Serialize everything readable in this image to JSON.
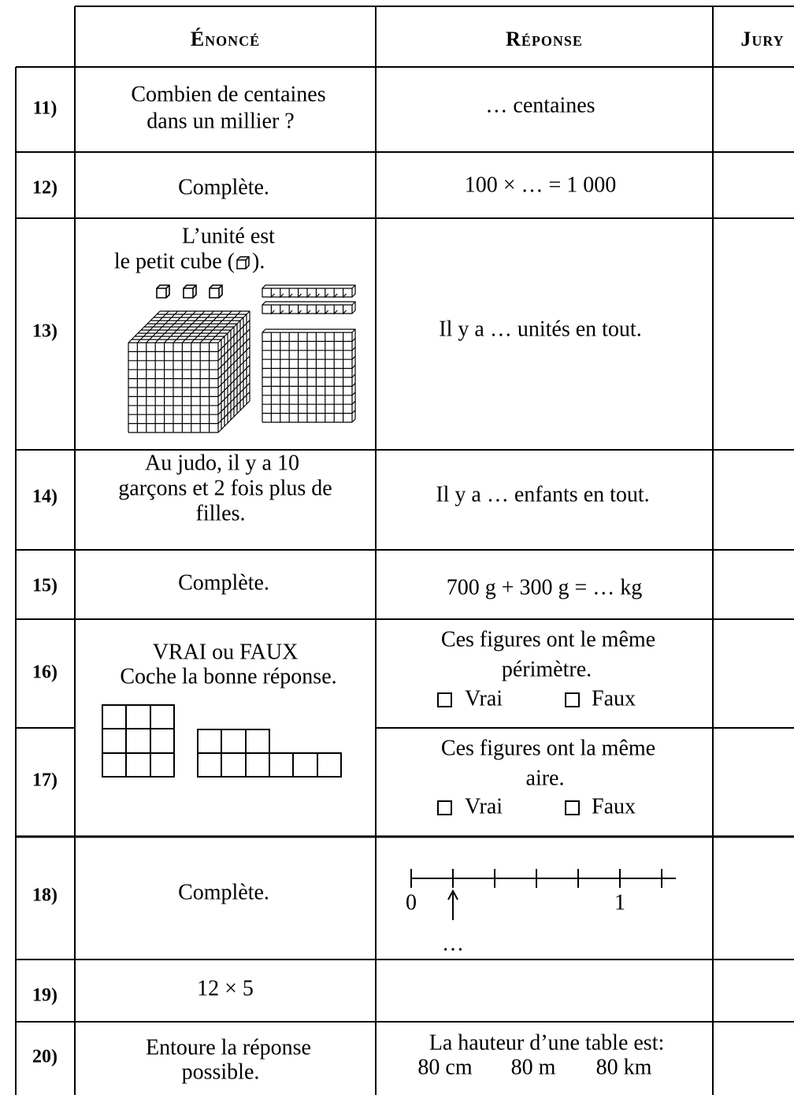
{
  "header": {
    "columns": [
      "Énoncé",
      "Réponse",
      "Jury"
    ]
  },
  "rows": [
    {
      "number": "11)",
      "question": [
        "Combien de centaines",
        "dans un millier ?"
      ],
      "answer": [
        "… centaines"
      ]
    },
    {
      "number": "12)",
      "question": [
        "Complète."
      ],
      "answer": [
        "100 × … = 1 000"
      ]
    },
    {
      "number": "13)",
      "question": [
        "L’unité est",
        "le petit cube (",
        ")."
      ],
      "answer": [
        "Il y a … unités en tout."
      ]
    },
    {
      "number": "14)",
      "question": [
        "Au judo, il y a 10",
        "garçons et 2 fois plus de",
        "filles."
      ],
      "answer": [
        "Il y a … enfants en tout."
      ]
    },
    {
      "number": "15)",
      "question": [
        "Complète."
      ],
      "answer": [
        "700 g + 300 g = … kg"
      ]
    },
    {
      "number": "16)",
      "question": [
        "VRAI ou FAUX",
        "Coche la bonne réponse."
      ],
      "answer": [
        "Ces figures ont le même",
        "périmètre."
      ],
      "options": [
        "Vrai",
        "Faux"
      ]
    },
    {
      "number": "17)",
      "answer": [
        "Ces figures ont la même",
        "aire."
      ],
      "options": [
        "Vrai",
        "Faux"
      ]
    },
    {
      "number": "18)",
      "question": [
        "Complète."
      ],
      "number_line": {
        "labels": [
          "0",
          "1"
        ],
        "blank": "…"
      }
    },
    {
      "number": "19)",
      "question": [
        "12 × 5"
      ]
    },
    {
      "number": "20)",
      "question": [
        "Entoure la réponse",
        "possible."
      ],
      "answer": [
        "La hauteur d’une table est:"
      ],
      "options": [
        "80 cm",
        "80 m",
        "80 km"
      ]
    }
  ]
}
